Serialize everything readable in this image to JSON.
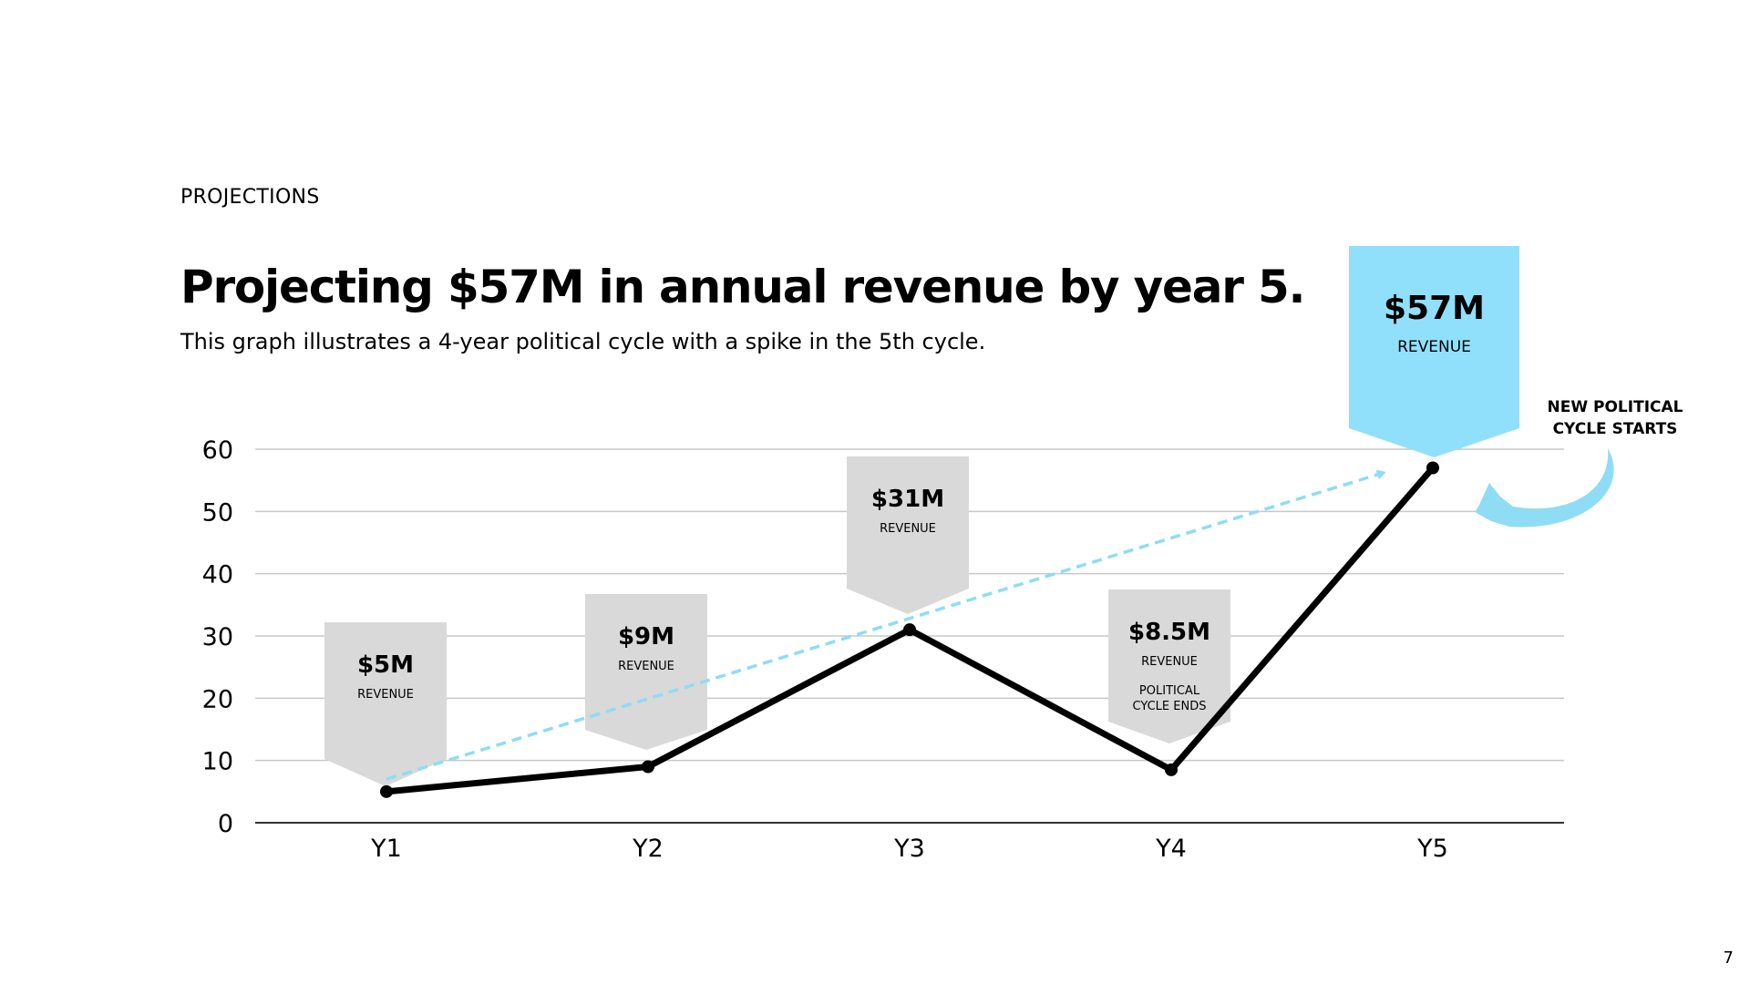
{
  "slide": {
    "eyebrow": "PROJECTIONS",
    "title": "Projecting $57M in annual revenue by year 5.",
    "subtitle": "This graph illustrates a 4-year political cycle with a spike in the 5th cycle.",
    "page_number": "7"
  },
  "colors": {
    "line": "#000000",
    "trend": "#8fdcf5",
    "callout_gray": "#d9d9d9",
    "callout_highlight": "#90e0fc",
    "grid": "#c8c8c8",
    "axis": "#333333"
  },
  "chart_data": {
    "type": "line",
    "categories": [
      "Y1",
      "Y2",
      "Y3",
      "Y4",
      "Y5"
    ],
    "series": [
      {
        "name": "Revenue ($M)",
        "values": [
          5,
          9,
          31,
          8.5,
          57
        ]
      }
    ],
    "trend_line": {
      "from": [
        "Y1",
        7
      ],
      "to": [
        "Y5",
        55
      ]
    },
    "ylim": [
      0,
      60
    ],
    "yticks": [
      0,
      10,
      20,
      30,
      40,
      50,
      60
    ],
    "grid": true,
    "title": "",
    "xlabel": "",
    "ylabel": "",
    "callouts": [
      {
        "category": "Y1",
        "value_label": "$5M",
        "label": "REVENUE",
        "note": "",
        "highlight": false
      },
      {
        "category": "Y2",
        "value_label": "$9M",
        "label": "REVENUE",
        "note": "",
        "highlight": false
      },
      {
        "category": "Y3",
        "value_label": "$31M",
        "label": "REVENUE",
        "note": "",
        "highlight": false
      },
      {
        "category": "Y4",
        "value_label": "$8.5M",
        "label": "REVENUE",
        "note": "POLITICAL\nCYCLE ENDS",
        "highlight": false
      },
      {
        "category": "Y5",
        "value_label": "$57M",
        "label": "REVENUE",
        "note": "",
        "highlight": true
      }
    ],
    "annotation": {
      "text": "NEW POLITICAL\nCYCLE STARTS",
      "icon": "curved-arrow-icon"
    }
  }
}
